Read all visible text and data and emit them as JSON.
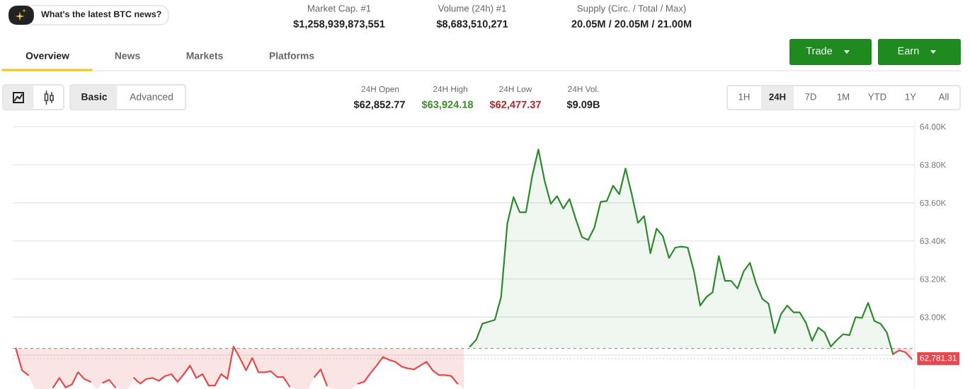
{
  "chart_data": {
    "type": "area",
    "categories": [
      null,
      null,
      null,
      null,
      null,
      null,
      null,
      null,
      null,
      null,
      null,
      null,
      null,
      null,
      null,
      null,
      null,
      null,
      null,
      null,
      null,
      null,
      null,
      null,
      null,
      null,
      null,
      null,
      null,
      null,
      null,
      null,
      null,
      null,
      null,
      null,
      null,
      null,
      null,
      null,
      null,
      null,
      null,
      null,
      null,
      null,
      null,
      null,
      null,
      null,
      null,
      null,
      null,
      null,
      null,
      null,
      null,
      null,
      null,
      null,
      null,
      null,
      null,
      null,
      null,
      null,
      null,
      null,
      null,
      null,
      null,
      null,
      null,
      null,
      null,
      null,
      null,
      null,
      null,
      null,
      null,
      null,
      null,
      null,
      null,
      null,
      null,
      null,
      null,
      null,
      null,
      null,
      null,
      null,
      null,
      null,
      null,
      null,
      null,
      null,
      null,
      null,
      null,
      null,
      null,
      null,
      null,
      null,
      null,
      null,
      null,
      null,
      null,
      null,
      null,
      null,
      null,
      null,
      null,
      null,
      null,
      null,
      null,
      null,
      null,
      null,
      null,
      null,
      null,
      null,
      null,
      null,
      null,
      null,
      null,
      null,
      null,
      null,
      null,
      null,
      null,
      null,
      null,
      null,
      null
    ],
    "series": [
      {
        "type": "line",
        "color": "#e5484d",
        "values": [
          62835,
          62720,
          62695,
          null,
          null,
          null,
          62630,
          62680,
          62630,
          62645,
          62710,
          62675,
          62660,
          null,
          62655,
          62670,
          62630,
          null,
          null,
          62680,
          62650,
          62675,
          62680,
          62665,
          62690,
          62700,
          62660,
          62700,
          62745,
          62680,
          62700,
          62640,
          62640,
          62700,
          62675,
          62845,
          62785,
          62720,
          62785,
          62710,
          62710,
          62715,
          62685,
          62685,
          62635,
          null,
          null,
          null,
          62685,
          62725,
          62640,
          null,
          null,
          null,
          null,
          62650,
          62660,
          62705,
          62745,
          62790,
          62775,
          62765,
          62740,
          62730,
          62725,
          62745,
          62765,
          62720,
          62695,
          62695,
          62690,
          62650,
          null,
          null,
          null,
          null,
          null,
          null,
          null,
          null,
          null,
          null,
          null,
          null,
          null,
          null,
          null,
          null,
          null,
          null,
          null,
          null,
          null,
          null,
          null,
          null,
          null,
          null,
          null,
          null,
          null,
          null,
          null,
          null,
          null,
          null,
          null,
          null,
          null,
          null,
          null,
          null,
          null,
          null,
          null,
          null,
          null,
          null,
          null,
          null,
          null,
          null,
          null,
          null,
          null,
          null,
          null,
          null,
          null,
          null,
          null,
          null,
          null,
          null,
          null,
          null,
          null,
          null,
          null,
          null,
          null,
          62805,
          62825,
          62815,
          62780
        ],
        "lower": [
          62835,
          62720,
          62695,
          62622,
          62622,
          62622,
          62630,
          62680,
          62630,
          62645,
          62710,
          62675,
          62660,
          62622,
          62655,
          62670,
          62630,
          62622,
          62622,
          62680,
          62650,
          62675,
          62680,
          62665,
          62690,
          62700,
          62660,
          62700,
          62745,
          62680,
          62700,
          62640,
          62640,
          62700,
          62675,
          62845,
          62785,
          62720,
          62785,
          62710,
          62710,
          62715,
          62685,
          62685,
          62635,
          62622,
          62622,
          62622,
          62685,
          62725,
          62640,
          62622,
          62622,
          62622,
          62622,
          62650,
          62660,
          62705,
          62745,
          62790,
          62775,
          62765,
          62740,
          62730,
          62725,
          62745,
          62765,
          62720,
          62695,
          62695,
          62690,
          62650,
          62622,
          null,
          null,
          null,
          null,
          null,
          null,
          null,
          null,
          null,
          null,
          null,
          null,
          null,
          null,
          null,
          null,
          null,
          null,
          null,
          null,
          null,
          null,
          null,
          null,
          null,
          null,
          null,
          null,
          null,
          null,
          null,
          null,
          null,
          null,
          null,
          null,
          null,
          null,
          null,
          null,
          null,
          null,
          null,
          null,
          null,
          null,
          null,
          null,
          null,
          null,
          null,
          null,
          null,
          null,
          null,
          null,
          null,
          null,
          null,
          null,
          null,
          null,
          null,
          null,
          null,
          null,
          null,
          null,
          62805,
          62825,
          62815,
          62780
        ],
        "upper": [
          62835,
          62835,
          62835,
          62835,
          62835,
          62835,
          62835,
          62835,
          62835,
          62835,
          62835,
          62835,
          62835,
          62835,
          62835,
          62835,
          62835,
          62835,
          62835,
          62835,
          62835,
          62835,
          62835,
          62835,
          62835,
          62835,
          62835,
          62835,
          62835,
          62835,
          62835,
          62835,
          62835,
          62835,
          62835,
          62835,
          62835,
          62835,
          62835,
          62835,
          62835,
          62835,
          62835,
          62835,
          62835,
          62835,
          62835,
          62835,
          62835,
          62835,
          62835,
          62835,
          62835,
          62835,
          62835,
          62835,
          62835,
          62835,
          62835,
          62835,
          62835,
          62835,
          62835,
          62835,
          62835,
          62835,
          62835,
          62835,
          62835,
          62835,
          62835,
          62835,
          62835,
          null,
          null,
          null,
          null,
          null,
          null,
          null,
          null,
          null,
          null,
          null,
          null,
          null,
          null,
          null,
          null,
          null,
          null,
          null,
          null,
          null,
          null,
          null,
          null,
          null,
          null,
          null,
          null,
          null,
          null,
          null,
          null,
          null,
          null,
          null,
          null,
          null,
          null,
          null,
          null,
          null,
          null,
          null,
          null,
          null,
          null,
          null,
          null,
          null,
          null,
          null,
          null,
          null,
          null,
          null,
          null,
          null,
          null,
          null,
          null,
          null,
          null,
          null,
          null,
          null,
          null,
          null,
          null,
          62835,
          62835,
          62835,
          62835
        ]
      },
      {
        "color": "#2f8a2f",
        "values": [
          null,
          null,
          null,
          null,
          null,
          null,
          null,
          null,
          null,
          null,
          null,
          null,
          null,
          null,
          null,
          null,
          null,
          null,
          null,
          null,
          null,
          null,
          null,
          null,
          null,
          null,
          null,
          null,
          null,
          null,
          null,
          null,
          null,
          null,
          null,
          null,
          null,
          null,
          null,
          null,
          null,
          null,
          null,
          null,
          null,
          null,
          null,
          null,
          null,
          null,
          null,
          null,
          null,
          null,
          null,
          null,
          null,
          null,
          null,
          null,
          null,
          null,
          null,
          null,
          null,
          null,
          null,
          null,
          null,
          null,
          null,
          null,
          null,
          62845,
          62880,
          62965,
          62975,
          62985,
          63105,
          63490,
          63630,
          63550,
          63550,
          63740,
          63880,
          63715,
          63595,
          63635,
          63570,
          63620,
          63515,
          63420,
          63405,
          63470,
          63605,
          63610,
          63690,
          63645,
          63780,
          63645,
          63495,
          63530,
          63335,
          63465,
          63425,
          63310,
          63365,
          63370,
          63365,
          63240,
          63060,
          63105,
          63130,
          63320,
          63190,
          63190,
          63150,
          63240,
          63285,
          63175,
          63095,
          63070,
          62915,
          63015,
          63060,
          63025,
          63025,
          62970,
          62875,
          62945,
          62920,
          62845,
          62880,
          62910,
          62905,
          63000,
          62995,
          63075,
          62980,
          62965,
          62920,
          62805,
          null,
          null,
          null
        ]
      }
    ],
    "ylim": [
      62622,
      64030
    ],
    "yticks": [
      {
        "value": 62800,
        "label": null
      },
      {
        "value": 63000,
        "label": "63.00K"
      },
      {
        "value": 63200,
        "label": "63.20K"
      },
      {
        "value": 63400,
        "label": "63.40K"
      },
      {
        "value": 63600,
        "label": "63.60K"
      },
      {
        "value": 63800,
        "label": "63.80K"
      },
      {
        "value": 64000,
        "label": "64.00K"
      }
    ],
    "grid": "y",
    "tick_labels": "y",
    "ref_lines": [
      {
        "axis": "y",
        "value": 62835,
        "color": "#9a9a9a",
        "line_style": "dashed"
      },
      {
        "axis": "y",
        "value": 62781.31,
        "label": "62,781.31",
        "color": "#c4c4c4",
        "line_style": "dotted"
      }
    ],
    "annotations": [
      "What's the latest BTC news?",
      "Market Cap. #1",
      "$1,258,939,873,551",
      "Volume (24h) #1",
      "$8,683,510,271",
      "Supply (Circ. / Total / Max)",
      "20.05M / 20.05M / 21.00M",
      "Overview",
      "News",
      "Markets",
      "Platforms",
      "Trade",
      "Earn",
      "Basic",
      "Advanced",
      "24H Open",
      "$62,852.77",
      "24H High",
      "$63,924.18",
      "24H Low",
      "$62,477.37",
      "24H Vol.",
      "$9.09B",
      "1H",
      "24H",
      "7D",
      "1M",
      "YTD",
      "1Y",
      "All"
    ]
  }
}
